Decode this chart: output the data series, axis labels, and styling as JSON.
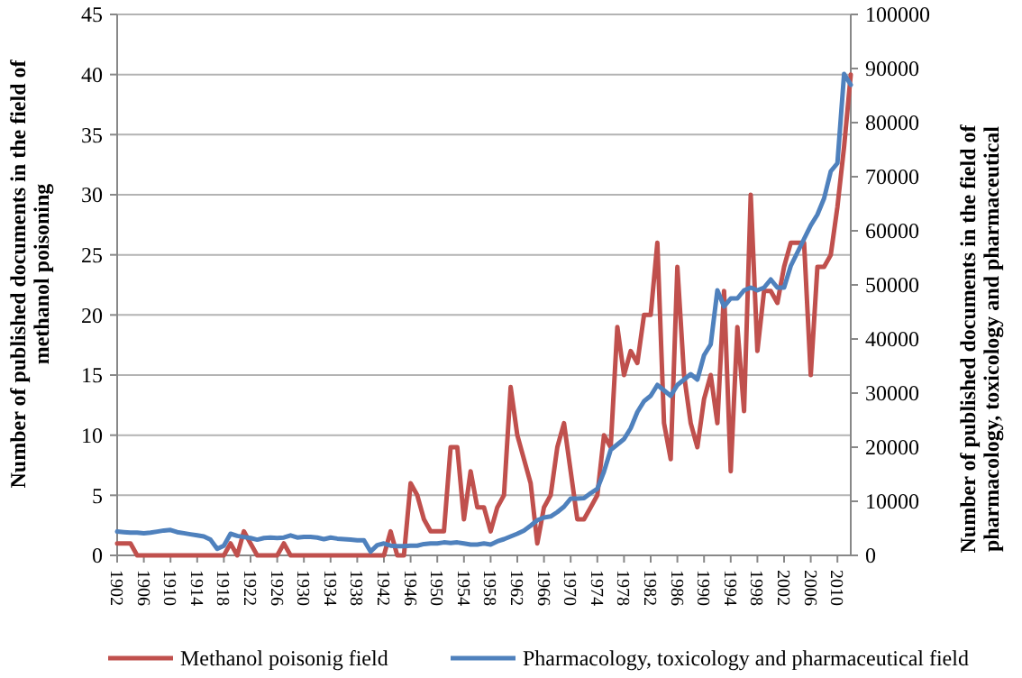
{
  "chart_data": {
    "type": "line",
    "x": [
      1902,
      1903,
      1904,
      1905,
      1906,
      1907,
      1908,
      1909,
      1910,
      1911,
      1912,
      1913,
      1914,
      1915,
      1916,
      1917,
      1918,
      1919,
      1920,
      1921,
      1922,
      1923,
      1924,
      1925,
      1926,
      1927,
      1928,
      1929,
      1930,
      1931,
      1932,
      1933,
      1934,
      1935,
      1936,
      1937,
      1938,
      1939,
      1940,
      1941,
      1942,
      1943,
      1944,
      1945,
      1946,
      1947,
      1948,
      1949,
      1950,
      1951,
      1952,
      1953,
      1954,
      1955,
      1956,
      1957,
      1958,
      1959,
      1960,
      1961,
      1962,
      1963,
      1964,
      1965,
      1966,
      1967,
      1968,
      1969,
      1970,
      1971,
      1972,
      1973,
      1974,
      1975,
      1976,
      1977,
      1978,
      1979,
      1980,
      1981,
      1982,
      1983,
      1984,
      1985,
      1986,
      1987,
      1988,
      1989,
      1990,
      1991,
      1992,
      1993,
      1994,
      1995,
      1996,
      1997,
      1998,
      1999,
      2000,
      2001,
      2002,
      2003,
      2004,
      2005,
      2006,
      2007,
      2008,
      2009,
      2010,
      2011,
      2012
    ],
    "series": [
      {
        "name": "Methanol poisonig field",
        "color": "#c0504d",
        "values": [
          1,
          1,
          1,
          0,
          0,
          0,
          0,
          0,
          0,
          0,
          0,
          0,
          0,
          0,
          0,
          0,
          0,
          1,
          0,
          2,
          1,
          0,
          0,
          0,
          0,
          1,
          0,
          0,
          0,
          0,
          0,
          0,
          0,
          0,
          0,
          0,
          0,
          0,
          0,
          0,
          0,
          2,
          0,
          0,
          6,
          5,
          3,
          2,
          2,
          2,
          9,
          9,
          3,
          7,
          4,
          4,
          2,
          4,
          5,
          14,
          10,
          8,
          6,
          1,
          4,
          5,
          9,
          11,
          7,
          3,
          3,
          4,
          5,
          10,
          9,
          19,
          15,
          17,
          16,
          20,
          20,
          26,
          11,
          8,
          24,
          15,
          11,
          9,
          13,
          15,
          11,
          22,
          7,
          19,
          12,
          30,
          17,
          22,
          22,
          21,
          24,
          26,
          26,
          26,
          15,
          24,
          24,
          25,
          29,
          34,
          40
        ]
      },
      {
        "name": "Pharmacology, toxicology and pharmaceutical field",
        "color": "#4f81bd",
        "axis": "y2",
        "values": [
          4400,
          4300,
          4200,
          4200,
          4100,
          4200,
          4400,
          4600,
          4700,
          4300,
          4100,
          3900,
          3700,
          3500,
          2900,
          1200,
          1800,
          4000,
          3600,
          3400,
          3200,
          2900,
          3200,
          3300,
          3200,
          3300,
          3700,
          3300,
          3400,
          3400,
          3300,
          3000,
          3300,
          3100,
          3000,
          2900,
          2800,
          2800,
          700,
          1900,
          2200,
          1800,
          1700,
          1700,
          1800,
          1800,
          2100,
          2200,
          2200,
          2400,
          2300,
          2400,
          2200,
          2000,
          2000,
          2200,
          2000,
          2600,
          3000,
          3500,
          4000,
          4600,
          5500,
          6500,
          7000,
          7200,
          8000,
          9000,
          10500,
          10500,
          10600,
          11500,
          12300,
          15500,
          19500,
          20500,
          21500,
          23500,
          26500,
          28500,
          29500,
          31500,
          30500,
          29500,
          31500,
          32500,
          33500,
          32500,
          37000,
          39000,
          49000,
          46000,
          47500,
          47500,
          49000,
          49500,
          49000,
          49500,
          51000,
          49500,
          49500,
          53500,
          56000,
          58500,
          61000,
          63000,
          66000,
          71000,
          72500,
          89000,
          87000
        ]
      }
    ],
    "xlim": [
      1902,
      2012
    ],
    "xticks": [
      1902,
      1906,
      1910,
      1914,
      1918,
      1922,
      1926,
      1930,
      1934,
      1938,
      1942,
      1946,
      1950,
      1954,
      1958,
      1962,
      1966,
      1970,
      1974,
      1978,
      1982,
      1986,
      1990,
      1994,
      1998,
      2002,
      2006,
      2010
    ],
    "ylim": [
      0,
      45
    ],
    "yticks": [
      0,
      5,
      10,
      15,
      20,
      25,
      30,
      35,
      40,
      45
    ],
    "y2lim": [
      0,
      100000
    ],
    "y2ticks": [
      0,
      10000,
      20000,
      30000,
      40000,
      50000,
      60000,
      70000,
      80000,
      90000,
      100000
    ],
    "ylabel": "Number of published documents in the field of\nmethanol poisoning",
    "y2label": "Number of published documents in the field of\npharmacology, toxicology and pharmaceutical",
    "grid": "y",
    "legend": "bottom",
    "marker": "none",
    "line_style": "solid"
  }
}
